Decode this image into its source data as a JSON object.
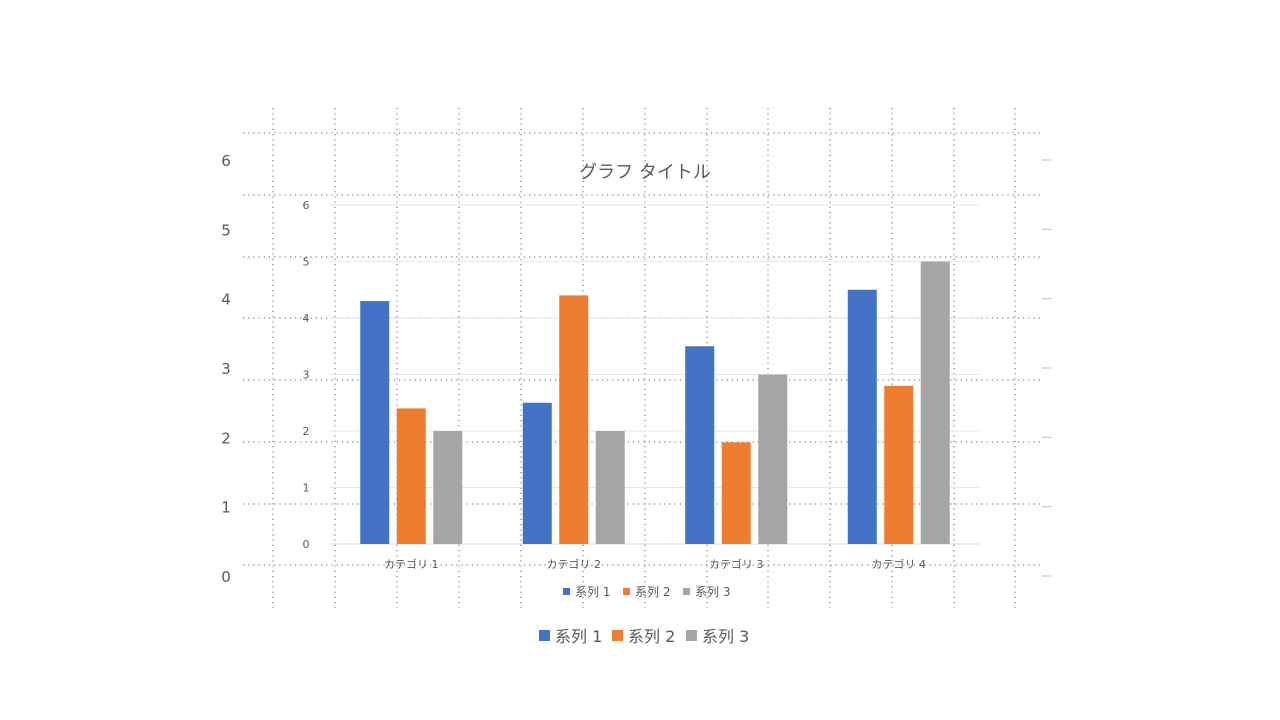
{
  "chart_data": [
    {
      "type": "bar",
      "role": "outer-placeholder-axis",
      "ylim": [
        0,
        6
      ],
      "y_ticks": [
        "0",
        "1",
        "2",
        "3",
        "4",
        "5",
        "6"
      ],
      "grid": "dotted",
      "legend": "bottom",
      "series": [
        {
          "name": "系列 1",
          "color": "#4472C4"
        },
        {
          "name": "系列 2",
          "color": "#ED7D31"
        },
        {
          "name": "系列 3",
          "color": "#A5A5A5"
        }
      ]
    },
    {
      "type": "bar",
      "title": "グラフ タイトル",
      "categories": [
        "カテゴリ 1",
        "カテゴリ 2",
        "カテゴリ 3",
        "カテゴリ 4"
      ],
      "ylim": [
        0,
        6
      ],
      "y_ticks": [
        "0",
        "1",
        "2",
        "3",
        "4",
        "5",
        "6"
      ],
      "grid": true,
      "legend": "bottom",
      "series": [
        {
          "name": "系列 1",
          "color": "#4472C4",
          "values": [
            4.3,
            2.5,
            3.5,
            4.5
          ]
        },
        {
          "name": "系列 2",
          "color": "#ED7D31",
          "values": [
            2.4,
            4.4,
            1.8,
            2.8
          ]
        },
        {
          "name": "系列 3",
          "color": "#A5A5A5",
          "values": [
            2.0,
            2.0,
            3.0,
            5.0
          ]
        }
      ]
    }
  ]
}
